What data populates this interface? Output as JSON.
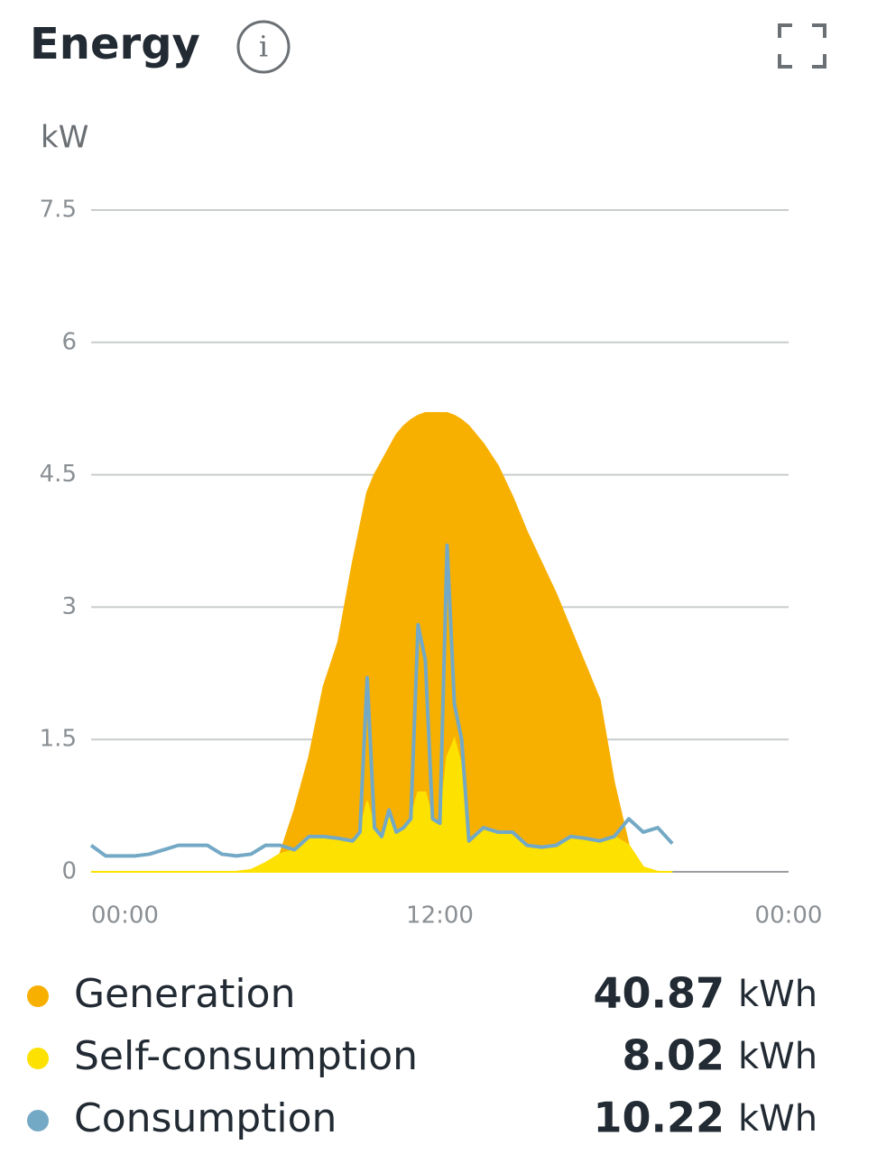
{
  "chart_data": {
    "type": "area",
    "title": "Energy",
    "y_label": "kW",
    "ylim": [
      0,
      7.5
    ],
    "yticks": [
      0,
      1.5,
      3,
      4.5,
      6,
      7.5
    ],
    "xlim": [
      0,
      24
    ],
    "xticks": [
      {
        "value": 0,
        "label": "00:00"
      },
      {
        "value": 12,
        "label": "12:00"
      },
      {
        "value": 24,
        "label": "00:00"
      }
    ],
    "grid": true,
    "total_unit": "kWh",
    "x": [
      0,
      0.5,
      1,
      1.5,
      2,
      2.5,
      3,
      3.5,
      4,
      4.5,
      5,
      5.5,
      6,
      6.5,
      7,
      7.5,
      8,
      8.5,
      9,
      9.25,
      9.5,
      9.75,
      10,
      10.25,
      10.5,
      10.75,
      11,
      11.25,
      11.5,
      11.75,
      12,
      12.25,
      12.5,
      12.75,
      13,
      13.5,
      14,
      14.5,
      15,
      15.5,
      16,
      16.5,
      17,
      17.5,
      18,
      18.5,
      19,
      19.5,
      20
    ],
    "series": [
      {
        "name": "Generation",
        "type": "area",
        "color": "#f8b000",
        "total": "40.87",
        "values": [
          0,
          0,
          0,
          0,
          0,
          0,
          0,
          0,
          0,
          0,
          0,
          0.02,
          0.1,
          0.2,
          0.7,
          1.3,
          2.1,
          2.6,
          3.5,
          3.9,
          4.3,
          4.5,
          4.65,
          4.8,
          4.95,
          5.05,
          5.12,
          5.17,
          5.2,
          5.2,
          5.2,
          5.2,
          5.17,
          5.12,
          5.05,
          4.85,
          4.6,
          4.25,
          3.85,
          3.5,
          3.15,
          2.75,
          2.35,
          1.95,
          1.0,
          0.3,
          0.05,
          0,
          0
        ]
      },
      {
        "name": "Self-consumption",
        "type": "area",
        "color": "#fde100",
        "total": "8.02",
        "values": [
          0,
          0,
          0,
          0,
          0,
          0,
          0,
          0,
          0,
          0,
          0,
          0.02,
          0.1,
          0.2,
          0.25,
          0.4,
          0.4,
          0.38,
          0.35,
          0.45,
          0.8,
          0.5,
          0.4,
          0.6,
          0.45,
          0.5,
          0.6,
          0.9,
          0.9,
          0.6,
          0.55,
          1.3,
          1.5,
          1.2,
          0.35,
          0.5,
          0.45,
          0.45,
          0.3,
          0.28,
          0.3,
          0.4,
          0.38,
          0.35,
          0.4,
          0.3,
          0.05,
          0,
          0
        ]
      },
      {
        "name": "Consumption",
        "type": "line",
        "color": "#74a9c6",
        "total": "10.22",
        "values": [
          0.3,
          0.18,
          0.18,
          0.18,
          0.2,
          0.25,
          0.3,
          0.3,
          0.3,
          0.2,
          0.18,
          0.2,
          0.3,
          0.3,
          0.25,
          0.4,
          0.4,
          0.38,
          0.35,
          0.45,
          2.2,
          0.5,
          0.4,
          0.7,
          0.45,
          0.5,
          0.6,
          2.8,
          2.4,
          0.6,
          0.55,
          3.7,
          1.9,
          1.5,
          0.35,
          0.5,
          0.45,
          0.45,
          0.3,
          0.28,
          0.3,
          0.4,
          0.38,
          0.35,
          0.4,
          0.6,
          0.45,
          0.5,
          0.32
        ]
      }
    ]
  }
}
